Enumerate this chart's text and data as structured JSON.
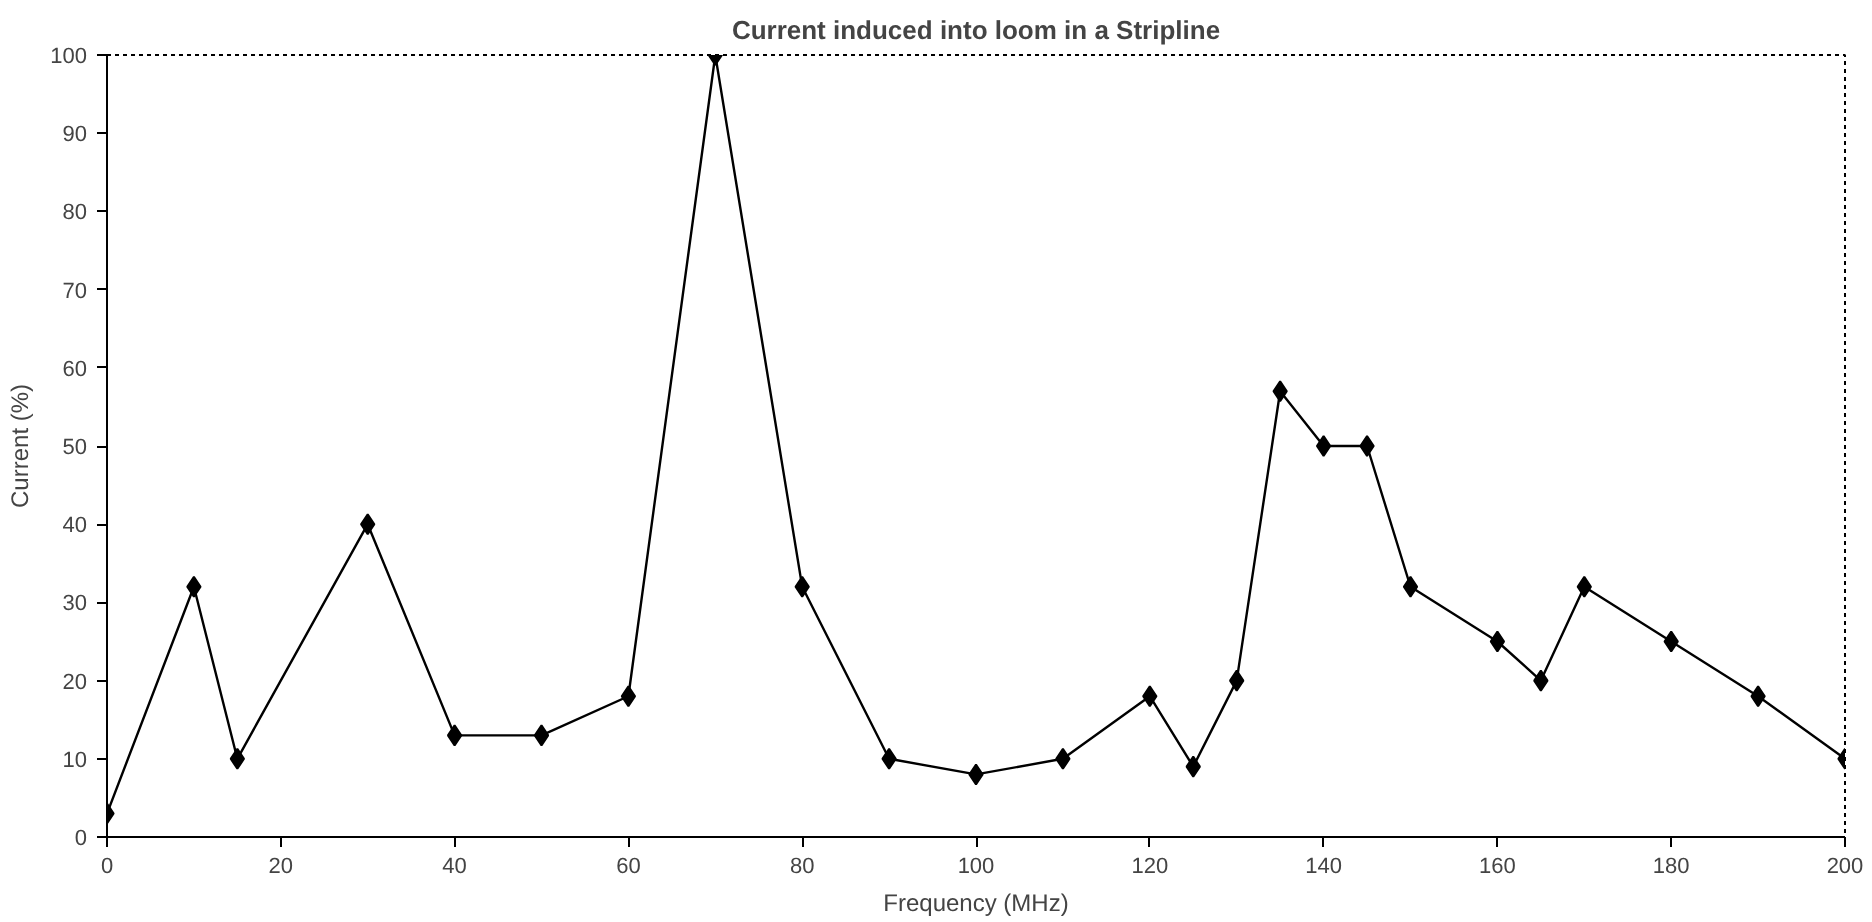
{
  "chart_data": {
    "type": "line",
    "title": "Current induced into loom in a Stripline",
    "xlabel": "Frequency (MHz)",
    "ylabel": "Current (%)",
    "x": [
      0,
      10,
      15,
      30,
      40,
      50,
      60,
      70,
      80,
      90,
      100,
      110,
      120,
      125,
      130,
      135,
      140,
      145,
      150,
      160,
      165,
      170,
      180,
      190,
      200
    ],
    "series": [
      {
        "color": "#000000",
        "values": [
          3,
          32,
          10,
          40,
          13,
          13,
          18,
          100,
          32,
          10,
          8,
          10,
          18,
          9,
          20,
          57,
          50,
          50,
          32,
          25,
          20,
          32,
          25,
          18,
          10
        ]
      }
    ],
    "xlim": [
      0,
      200
    ],
    "ylim": [
      0,
      100
    ],
    "xticks": [
      0,
      20,
      40,
      60,
      80,
      100,
      120,
      140,
      160,
      180,
      200
    ],
    "yticks": [
      0,
      10,
      20,
      30,
      40,
      50,
      60,
      70,
      80,
      90,
      100
    ],
    "grid": false,
    "marker": "diamond",
    "line_style": "solid"
  }
}
